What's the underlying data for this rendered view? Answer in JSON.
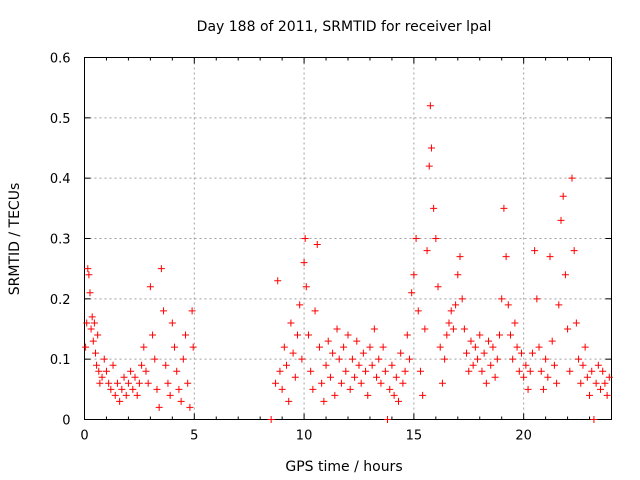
{
  "chart_data": {
    "type": "scatter",
    "title": "Day 188 of 2011, SRMTID for receiver lpal",
    "xlabel": "GPS time / hours",
    "ylabel": "SRMTID / TECUs",
    "xlim": [
      0,
      24
    ],
    "ylim": [
      0,
      0.6
    ],
    "xticks": [
      0,
      5,
      10,
      15,
      20
    ],
    "yticks": [
      0,
      0.1,
      0.2,
      0.3,
      0.4,
      0.5,
      0.6
    ],
    "xtick_labels": [
      "0",
      "5",
      "10",
      "15",
      "20"
    ],
    "ytick_labels": [
      "0",
      "0.1",
      "0.2",
      "0.3",
      "0.4",
      "0.5",
      "0.6"
    ],
    "grid": true,
    "marker": "+",
    "series": [
      {
        "name": "SRMTID",
        "color": "#ff0000",
        "points": [
          [
            0.05,
            0.12
          ],
          [
            0.1,
            0.16
          ],
          [
            0.15,
            0.25
          ],
          [
            0.2,
            0.24
          ],
          [
            0.25,
            0.21
          ],
          [
            0.3,
            0.15
          ],
          [
            0.35,
            0.17
          ],
          [
            0.4,
            0.13
          ],
          [
            0.45,
            0.16
          ],
          [
            0.5,
            0.11
          ],
          [
            0.55,
            0.09
          ],
          [
            0.6,
            0.14
          ],
          [
            0.65,
            0.08
          ],
          [
            0.7,
            0.06
          ],
          [
            0.8,
            0.07
          ],
          [
            0.9,
            0.1
          ],
          [
            1.0,
            0.08
          ],
          [
            1.1,
            0.06
          ],
          [
            1.2,
            0.05
          ],
          [
            1.3,
            0.09
          ],
          [
            1.4,
            0.04
          ],
          [
            1.5,
            0.06
          ],
          [
            1.6,
            0.03
          ],
          [
            1.7,
            0.05
          ],
          [
            1.8,
            0.07
          ],
          [
            1.9,
            0.04
          ],
          [
            2.0,
            0.06
          ],
          [
            2.1,
            0.08
          ],
          [
            2.2,
            0.05
          ],
          [
            2.3,
            0.07
          ],
          [
            2.4,
            0.04
          ],
          [
            2.5,
            0.06
          ],
          [
            2.6,
            0.09
          ],
          [
            2.7,
            0.12
          ],
          [
            2.8,
            0.08
          ],
          [
            2.9,
            0.06
          ],
          [
            3.0,
            0.22
          ],
          [
            3.1,
            0.14
          ],
          [
            3.2,
            0.1
          ],
          [
            3.3,
            0.05
          ],
          [
            3.4,
            0.02
          ],
          [
            3.5,
            0.25
          ],
          [
            3.6,
            0.18
          ],
          [
            3.7,
            0.09
          ],
          [
            3.8,
            0.06
          ],
          [
            3.9,
            0.04
          ],
          [
            4.0,
            0.16
          ],
          [
            4.1,
            0.12
          ],
          [
            4.2,
            0.08
          ],
          [
            4.3,
            0.05
          ],
          [
            4.4,
            0.03
          ],
          [
            4.5,
            0.1
          ],
          [
            4.6,
            0.14
          ],
          [
            4.7,
            0.06
          ],
          [
            4.8,
            0.02
          ],
          [
            4.9,
            0.18
          ],
          [
            4.95,
            0.12
          ],
          [
            8.5,
            0.0
          ],
          [
            8.7,
            0.06
          ],
          [
            8.8,
            0.23
          ],
          [
            8.9,
            0.08
          ],
          [
            9.0,
            0.05
          ],
          [
            9.1,
            0.12
          ],
          [
            9.2,
            0.09
          ],
          [
            9.3,
            0.03
          ],
          [
            9.4,
            0.16
          ],
          [
            9.5,
            0.11
          ],
          [
            9.6,
            0.07
          ],
          [
            9.7,
            0.14
          ],
          [
            9.8,
            0.19
          ],
          [
            9.9,
            0.1
          ],
          [
            10.0,
            0.26
          ],
          [
            10.05,
            0.3
          ],
          [
            10.1,
            0.22
          ],
          [
            10.2,
            0.14
          ],
          [
            10.3,
            0.08
          ],
          [
            10.4,
            0.05
          ],
          [
            10.5,
            0.18
          ],
          [
            10.6,
            0.29
          ],
          [
            10.7,
            0.12
          ],
          [
            10.8,
            0.06
          ],
          [
            10.9,
            0.03
          ],
          [
            11.0,
            0.09
          ],
          [
            11.1,
            0.13
          ],
          [
            11.2,
            0.07
          ],
          [
            11.3,
            0.11
          ],
          [
            11.4,
            0.04
          ],
          [
            11.5,
            0.15
          ],
          [
            11.6,
            0.1
          ],
          [
            11.7,
            0.06
          ],
          [
            11.8,
            0.12
          ],
          [
            11.9,
            0.08
          ],
          [
            12.0,
            0.14
          ],
          [
            12.1,
            0.05
          ],
          [
            12.2,
            0.1
          ],
          [
            12.3,
            0.07
          ],
          [
            12.4,
            0.13
          ],
          [
            12.5,
            0.09
          ],
          [
            12.6,
            0.06
          ],
          [
            12.7,
            0.11
          ],
          [
            12.8,
            0.08
          ],
          [
            12.9,
            0.04
          ],
          [
            13.0,
            0.12
          ],
          [
            13.1,
            0.09
          ],
          [
            13.2,
            0.15
          ],
          [
            13.3,
            0.07
          ],
          [
            13.4,
            0.1
          ],
          [
            13.5,
            0.06
          ],
          [
            13.6,
            0.12
          ],
          [
            13.7,
            0.08
          ],
          [
            13.8,
            0.0
          ],
          [
            13.9,
            0.05
          ],
          [
            14.0,
            0.09
          ],
          [
            14.1,
            0.04
          ],
          [
            14.2,
            0.07
          ],
          [
            14.3,
            0.03
          ],
          [
            14.4,
            0.11
          ],
          [
            14.5,
            0.06
          ],
          [
            14.6,
            0.08
          ],
          [
            14.7,
            0.14
          ],
          [
            14.8,
            0.1
          ],
          [
            14.9,
            0.21
          ],
          [
            15.0,
            0.24
          ],
          [
            15.1,
            0.3
          ],
          [
            15.2,
            0.18
          ],
          [
            15.3,
            0.08
          ],
          [
            15.4,
            0.04
          ],
          [
            15.5,
            0.15
          ],
          [
            15.6,
            0.28
          ],
          [
            15.7,
            0.42
          ],
          [
            15.75,
            0.52
          ],
          [
            15.8,
            0.45
          ],
          [
            15.9,
            0.35
          ],
          [
            16.0,
            0.3
          ],
          [
            16.1,
            0.22
          ],
          [
            16.2,
            0.12
          ],
          [
            16.3,
            0.06
          ],
          [
            16.4,
            0.1
          ],
          [
            16.5,
            0.14
          ],
          [
            16.6,
            0.16
          ],
          [
            16.7,
            0.18
          ],
          [
            16.8,
            0.15
          ],
          [
            16.9,
            0.19
          ],
          [
            17.0,
            0.24
          ],
          [
            17.1,
            0.27
          ],
          [
            17.2,
            0.2
          ],
          [
            17.3,
            0.15
          ],
          [
            17.4,
            0.11
          ],
          [
            17.5,
            0.08
          ],
          [
            17.6,
            0.13
          ],
          [
            17.7,
            0.09
          ],
          [
            17.8,
            0.12
          ],
          [
            17.9,
            0.1
          ],
          [
            18.0,
            0.14
          ],
          [
            18.1,
            0.08
          ],
          [
            18.2,
            0.11
          ],
          [
            18.3,
            0.06
          ],
          [
            18.4,
            0.13
          ],
          [
            18.5,
            0.09
          ],
          [
            18.6,
            0.12
          ],
          [
            18.7,
            0.07
          ],
          [
            18.8,
            0.1
          ],
          [
            18.9,
            0.14
          ],
          [
            19.0,
            0.2
          ],
          [
            19.1,
            0.35
          ],
          [
            19.2,
            0.27
          ],
          [
            19.3,
            0.19
          ],
          [
            19.4,
            0.14
          ],
          [
            19.5,
            0.1
          ],
          [
            19.6,
            0.16
          ],
          [
            19.7,
            0.12
          ],
          [
            19.8,
            0.08
          ],
          [
            19.9,
            0.11
          ],
          [
            20.0,
            0.07
          ],
          [
            20.1,
            0.09
          ],
          [
            20.2,
            0.05
          ],
          [
            20.3,
            0.08
          ],
          [
            20.4,
            0.11
          ],
          [
            20.5,
            0.28
          ],
          [
            20.6,
            0.2
          ],
          [
            20.7,
            0.12
          ],
          [
            20.8,
            0.08
          ],
          [
            20.9,
            0.05
          ],
          [
            21.0,
            0.1
          ],
          [
            21.1,
            0.07
          ],
          [
            21.2,
            0.27
          ],
          [
            21.3,
            0.13
          ],
          [
            21.4,
            0.09
          ],
          [
            21.5,
            0.06
          ],
          [
            21.6,
            0.19
          ],
          [
            21.7,
            0.33
          ],
          [
            21.8,
            0.37
          ],
          [
            21.9,
            0.24
          ],
          [
            22.0,
            0.15
          ],
          [
            22.1,
            0.08
          ],
          [
            22.2,
            0.4
          ],
          [
            22.3,
            0.28
          ],
          [
            22.4,
            0.16
          ],
          [
            22.5,
            0.1
          ],
          [
            22.6,
            0.06
          ],
          [
            22.7,
            0.09
          ],
          [
            22.8,
            0.12
          ],
          [
            22.9,
            0.07
          ],
          [
            23.0,
            0.04
          ],
          [
            23.1,
            0.08
          ],
          [
            23.2,
            0.0
          ],
          [
            23.3,
            0.06
          ],
          [
            23.4,
            0.09
          ],
          [
            23.5,
            0.05
          ],
          [
            23.6,
            0.08
          ],
          [
            23.7,
            0.06
          ],
          [
            23.8,
            0.04
          ],
          [
            23.9,
            0.07
          ]
        ]
      }
    ]
  }
}
